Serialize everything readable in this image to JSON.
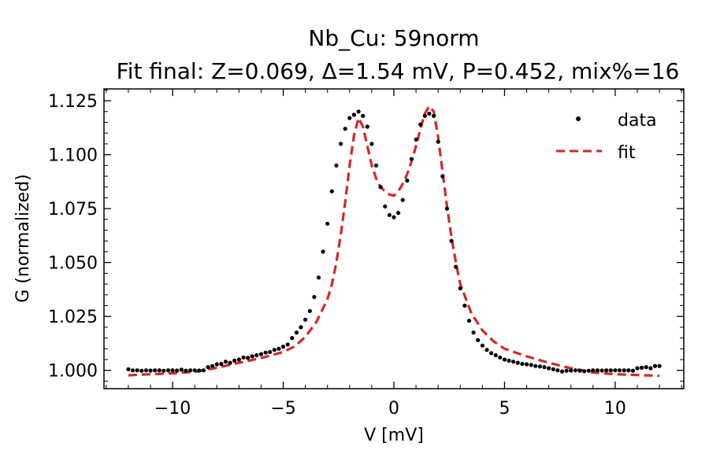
{
  "chart_data": {
    "type": "scatter",
    "title_line1": "Nb_Cu: 59norm",
    "title_line2": "Fit final: Z=0.069, Δ=1.54 mV, P=0.452, mix%=16",
    "xlabel": "V [mV]",
    "ylabel": "G (normalized)",
    "xlim": [
      -13.1,
      13.1
    ],
    "ylim": [
      0.9915,
      1.1305
    ],
    "x_ticks": [
      -10,
      -5,
      0,
      5,
      10
    ],
    "x_tick_labels": [
      "−10",
      "−5",
      "0",
      "5",
      "10"
    ],
    "y_ticks": [
      1.0,
      1.025,
      1.05,
      1.075,
      1.1,
      1.125
    ],
    "y_tick_labels": [
      "1.000",
      "1.025",
      "1.050",
      "1.075",
      "1.100",
      "1.125"
    ],
    "legend_position": "top-right",
    "grid": false,
    "colors": {
      "data": "#000000",
      "fit": "#d62728"
    },
    "series": [
      {
        "name": "data",
        "style": "points",
        "x": [
          -12.0,
          -11.8,
          -11.6,
          -11.4,
          -11.2,
          -11.0,
          -10.8,
          -10.6,
          -10.4,
          -10.2,
          -10.0,
          -9.8,
          -9.6,
          -9.4,
          -9.2,
          -9.0,
          -8.8,
          -8.6,
          -8.4,
          -8.2,
          -8.0,
          -7.8,
          -7.6,
          -7.4,
          -7.2,
          -7.0,
          -6.8,
          -6.6,
          -6.4,
          -6.2,
          -6.0,
          -5.8,
          -5.6,
          -5.4,
          -5.2,
          -5.0,
          -4.8,
          -4.6,
          -4.4,
          -4.2,
          -4.0,
          -3.8,
          -3.6,
          -3.4,
          -3.2,
          -3.0,
          -2.8,
          -2.6,
          -2.4,
          -2.2,
          -2.0,
          -1.8,
          -1.6,
          -1.4,
          -1.2,
          -1.0,
          -0.8,
          -0.6,
          -0.4,
          -0.2,
          0.0,
          0.2,
          0.4,
          0.6,
          0.8,
          1.0,
          1.2,
          1.4,
          1.6,
          1.8,
          2.0,
          2.2,
          2.4,
          2.6,
          2.8,
          3.0,
          3.2,
          3.4,
          3.6,
          3.8,
          4.0,
          4.2,
          4.4,
          4.6,
          4.8,
          5.0,
          5.2,
          5.4,
          5.6,
          5.8,
          6.0,
          6.2,
          6.4,
          6.6,
          6.8,
          7.0,
          7.2,
          7.4,
          7.6,
          7.8,
          8.0,
          8.2,
          8.4,
          8.6,
          8.8,
          9.0,
          9.2,
          9.4,
          9.6,
          9.8,
          10.0,
          10.2,
          10.4,
          10.6,
          10.8,
          11.0,
          11.2,
          11.4,
          11.6,
          11.8,
          12.0
        ],
        "y": [
          1.0005,
          1.0,
          1.0,
          0.9998,
          1.0,
          0.9999,
          1.0,
          1.0,
          0.9998,
          1.0,
          1.0,
          0.9999,
          1.0003,
          0.9998,
          1.0,
          1.0,
          0.9999,
          1.0,
          1.0015,
          1.002,
          1.0028,
          1.003,
          1.004,
          1.0035,
          1.0045,
          1.005,
          1.006,
          1.0058,
          1.0065,
          1.007,
          1.0075,
          1.0082,
          1.0085,
          1.0095,
          1.01,
          1.011,
          1.012,
          1.015,
          1.0175,
          1.02,
          1.0235,
          1.0275,
          1.034,
          1.043,
          1.055,
          1.068,
          1.083,
          1.095,
          1.105,
          1.112,
          1.117,
          1.1185,
          1.12,
          1.118,
          1.113,
          1.105,
          1.095,
          1.085,
          1.076,
          1.072,
          1.071,
          1.073,
          1.079,
          1.088,
          1.098,
          1.107,
          1.114,
          1.118,
          1.119,
          1.118,
          1.106,
          1.09,
          1.075,
          1.06,
          1.048,
          1.038,
          1.03,
          1.023,
          1.0175,
          1.014,
          1.0115,
          1.0095,
          1.008,
          1.007,
          1.006,
          1.005,
          1.0045,
          1.004,
          1.0035,
          1.003,
          1.0028,
          1.0025,
          1.002,
          1.0018,
          1.0015,
          1.001,
          1.0005,
          1.0,
          0.9995,
          0.9998,
          0.9999,
          1.0,
          0.9998,
          0.9996,
          0.9998,
          1.0,
          1.0,
          0.9999,
          1.0,
          1.0,
          1.0,
          1.0,
          1.0,
          1.0,
          0.9998,
          1.001,
          1.0012,
          1.0015,
          1.001,
          1.002,
          1.002
        ]
      },
      {
        "name": "fit",
        "style": "dashed-line",
        "x": [
          -12.0,
          -11.0,
          -10.0,
          -9.0,
          -8.0,
          -7.0,
          -6.0,
          -5.0,
          -4.5,
          -4.0,
          -3.5,
          -3.0,
          -2.8,
          -2.6,
          -2.4,
          -2.2,
          -2.0,
          -1.8,
          -1.6,
          -1.4,
          -1.2,
          -1.0,
          -0.8,
          -0.6,
          -0.4,
          -0.2,
          0.0,
          0.2,
          0.4,
          0.6,
          0.8,
          1.0,
          1.2,
          1.4,
          1.6,
          1.8,
          2.0,
          2.2,
          2.4,
          2.6,
          2.8,
          3.0,
          3.5,
          4.0,
          4.5,
          5.0,
          6.0,
          7.0,
          8.0,
          9.0,
          10.0,
          11.0,
          12.0
        ],
        "y": [
          0.9977,
          0.9982,
          0.9986,
          0.9993,
          1.0012,
          1.0035,
          1.0057,
          1.0085,
          1.011,
          1.0155,
          1.0225,
          1.033,
          1.04,
          1.05,
          1.063,
          1.078,
          1.095,
          1.109,
          1.117,
          1.113,
          1.104,
          1.095,
          1.089,
          1.085,
          1.083,
          1.0815,
          1.081,
          1.083,
          1.0865,
          1.091,
          1.097,
          1.104,
          1.112,
          1.119,
          1.1225,
          1.12,
          1.108,
          1.092,
          1.076,
          1.062,
          1.05,
          1.04,
          1.0265,
          1.0185,
          1.0135,
          1.01,
          1.0065,
          1.0035,
          1.001,
          0.999,
          0.9982,
          0.9978,
          0.9975
        ]
      }
    ]
  }
}
